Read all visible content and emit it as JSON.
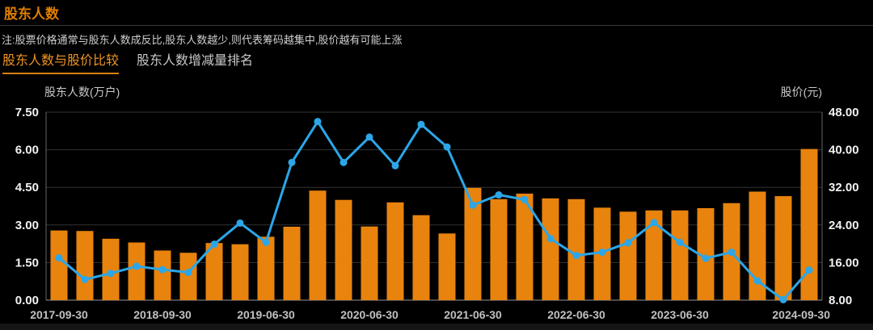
{
  "header": {
    "title": "股东人数",
    "note": "注:股票价格通常与股东人数成反比,股东人数越少,则代表筹码越集中,股价越有可能上涨"
  },
  "tabs": [
    {
      "label": "股东人数与股价比较",
      "active": true
    },
    {
      "label": "股东人数增减量排名",
      "active": false
    }
  ],
  "colors": {
    "bar": "#e8830d",
    "line": "#2ca6e8",
    "grid": "#333333",
    "plot_border": "#666666",
    "axis_bottom": "#999999",
    "tick_label": "#f2f2f2",
    "date_label": "#c0c0c0",
    "accent_orange": "#ef9426"
  },
  "chart_data": {
    "type": "bar",
    "title": "股东人数与股价比较",
    "ylabel_left": "股东人数(万户)",
    "ylabel_right": "股价(元)",
    "ylim_left": [
      0,
      7.5
    ],
    "ylim_right": [
      8,
      48
    ],
    "grid": true,
    "yticks_left": [
      "7.50",
      "6.00",
      "4.50",
      "3.00",
      "1.50",
      "0.00"
    ],
    "yticks_right": [
      "48.00",
      "40.00",
      "32.00",
      "24.00",
      "16.00",
      "8.00"
    ],
    "x_tick_labels": [
      {
        "index": 0,
        "label": "2017-09-30"
      },
      {
        "index": 4,
        "label": "2018-09-30"
      },
      {
        "index": 8,
        "label": "2019-06-30"
      },
      {
        "index": 12,
        "label": "2020-06-30"
      },
      {
        "index": 16,
        "label": "2021-06-30"
      },
      {
        "index": 20,
        "label": "2022-06-30"
      },
      {
        "index": 24,
        "label": "2023-06-30"
      },
      {
        "index": 29,
        "label": "2024-09-30"
      }
    ],
    "series": [
      {
        "name": "股东人数",
        "kind": "bar",
        "axis": "left",
        "values": [
          2.78,
          2.76,
          2.45,
          2.3,
          1.98,
          1.89,
          2.28,
          2.23,
          2.53,
          2.93,
          4.37,
          4.0,
          2.94,
          3.9,
          3.39,
          2.66,
          4.48,
          4.03,
          4.25,
          4.06,
          4.03,
          3.69,
          3.53,
          3.58,
          3.58,
          3.67,
          3.87,
          4.33,
          4.15,
          6.03
        ]
      },
      {
        "name": "股价",
        "kind": "line",
        "axis": "right",
        "values": [
          17.0,
          12.4,
          13.7,
          15.2,
          14.5,
          13.9,
          19.9,
          24.4,
          20.3,
          37.3,
          46.0,
          37.3,
          42.7,
          36.6,
          45.4,
          40.6,
          28.2,
          30.4,
          29.4,
          21.1,
          17.5,
          18.2,
          20.2,
          24.5,
          20.3,
          16.9,
          18.2,
          12.1,
          8.1,
          14.4
        ]
      }
    ]
  }
}
